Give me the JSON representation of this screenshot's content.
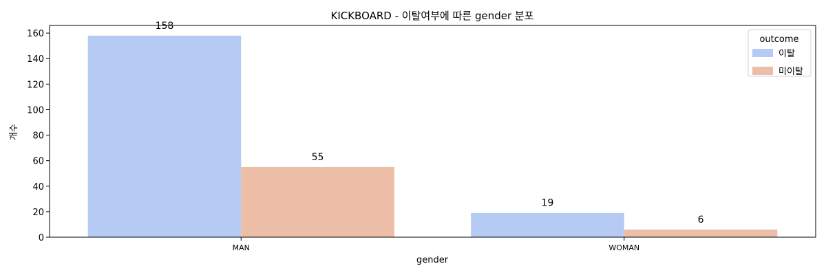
{
  "chart_data": {
    "type": "bar",
    "title": "KICKBOARD - 이탈여부에 따른 gender 분포",
    "xlabel": "gender",
    "ylabel": "개수",
    "categories": [
      "MAN",
      "WOMAN"
    ],
    "series": [
      {
        "name": "이탈",
        "values": [
          158,
          19
        ],
        "color": "#b5cbf4"
      },
      {
        "name": "미이탈",
        "values": [
          55,
          6
        ],
        "color": "#ecbea8"
      }
    ],
    "ylim": [
      0,
      166
    ],
    "yticks": [
      0,
      20,
      40,
      60,
      80,
      100,
      120,
      140,
      160
    ],
    "grid": false,
    "legend": {
      "title": "outcome",
      "placement": "top-right"
    }
  }
}
